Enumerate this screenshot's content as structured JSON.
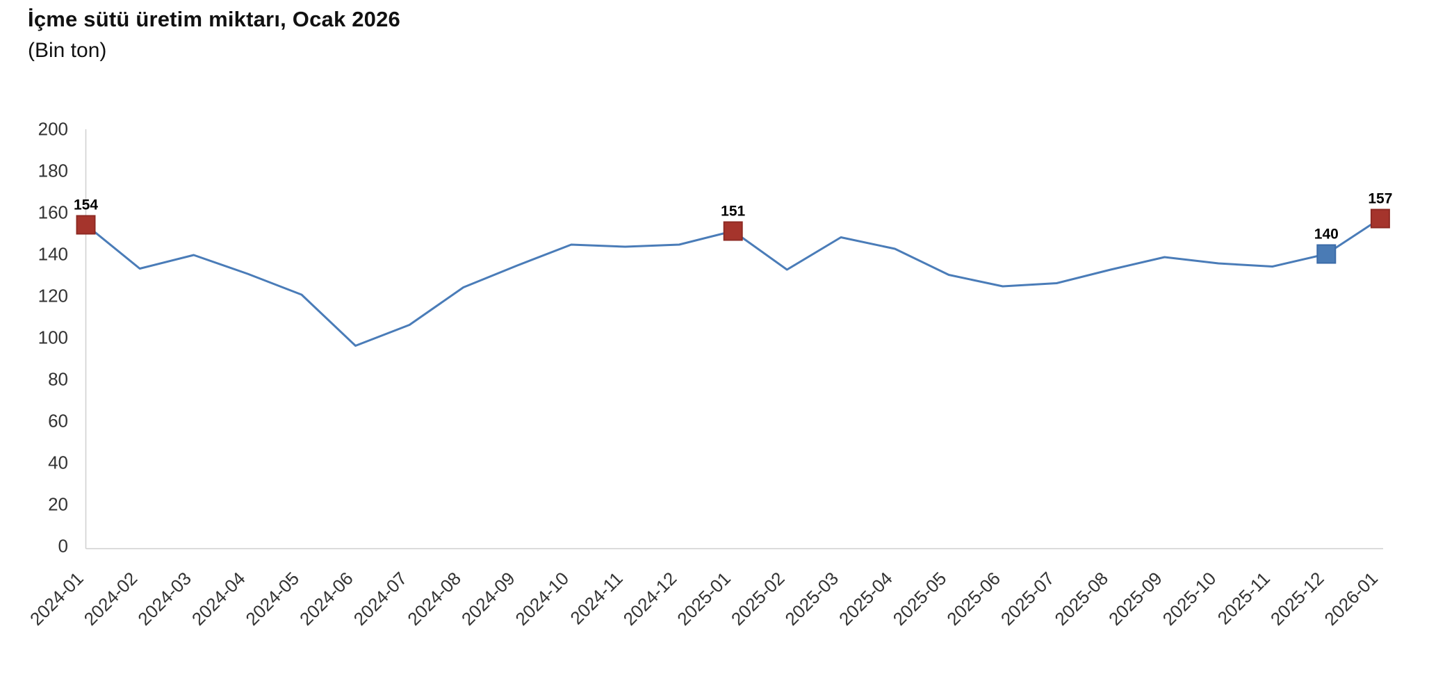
{
  "header": {
    "title": "İçme sütü üretim miktarı, Ocak 2026",
    "subtitle": "(Bin ton)"
  },
  "chart_data": {
    "type": "line",
    "title": "İçme sütü üretim miktarı, Ocak 2026",
    "subtitle": "(Bin ton)",
    "unit": "Bin ton",
    "xlabel": "",
    "ylabel": "",
    "ylim": [
      0,
      200
    ],
    "ytick_step": 20,
    "yticks": [
      0,
      20,
      40,
      60,
      80,
      100,
      120,
      140,
      160,
      180,
      200
    ],
    "grid": false,
    "legend_position": "none",
    "categories": [
      "2024-01",
      "2024-02",
      "2024-03",
      "2024-04",
      "2024-05",
      "2024-06",
      "2024-07",
      "2024-08",
      "2024-09",
      "2024-10",
      "2024-11",
      "2024-12",
      "2025-01",
      "2025-02",
      "2025-03",
      "2025-04",
      "2025-05",
      "2025-06",
      "2025-07",
      "2025-08",
      "2025-09",
      "2025-10",
      "2025-11",
      "2025-12",
      "2026-01"
    ],
    "values": [
      154,
      133,
      139.5,
      130.5,
      120.5,
      96,
      106,
      124,
      134.5,
      144.5,
      143.5,
      144.5,
      151,
      132.5,
      148,
      142.5,
      130,
      124.5,
      126,
      132.5,
      138.5,
      135.5,
      134,
      140,
      157
    ],
    "marked_points": [
      {
        "category": "2024-01",
        "value": 154,
        "label": "154",
        "marker": "red"
      },
      {
        "category": "2025-01",
        "value": 151,
        "label": "151",
        "marker": "red"
      },
      {
        "category": "2025-12",
        "value": 140,
        "label": "140",
        "marker": "blue"
      },
      {
        "category": "2026-01",
        "value": 157,
        "label": "157",
        "marker": "red"
      }
    ],
    "colors": {
      "line": "#4a7cb8",
      "marker_red_fill": "#a5342c",
      "marker_red_stroke": "#8e2a23",
      "marker_blue_fill": "#4a7bb5",
      "marker_blue_stroke": "#3b6ba8",
      "axis_line": "#cfcfcf",
      "tick_text": "#333333",
      "point_label_text": "#000000"
    }
  }
}
